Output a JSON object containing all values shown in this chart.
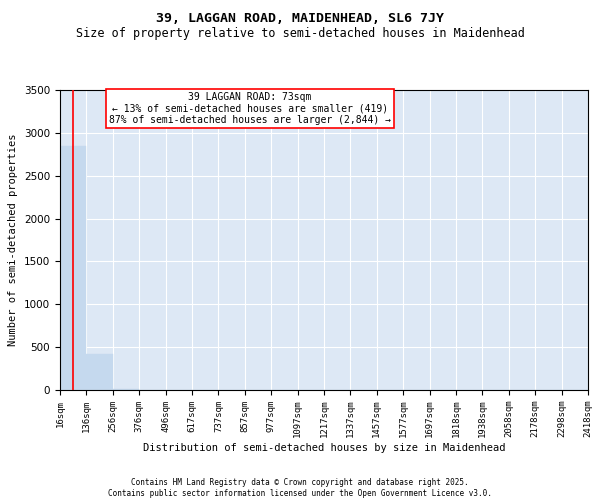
{
  "title": "39, LAGGAN ROAD, MAIDENHEAD, SL6 7JY",
  "subtitle": "Size of property relative to semi-detached houses in Maidenhead",
  "xlabel": "Distribution of semi-detached houses by size in Maidenhead",
  "ylabel": "Number of semi-detached properties",
  "bar_color": "#c5d9ee",
  "bar_edge_color": "#c5d9ee",
  "vline_color": "red",
  "vline_x": 73,
  "annotation_text": "39 LAGGAN ROAD: 73sqm\n← 13% of semi-detached houses are smaller (419)\n87% of semi-detached houses are larger (2,844) →",
  "ylim": [
    0,
    3500
  ],
  "bin_edges": [
    16,
    136,
    256,
    376,
    496,
    617,
    737,
    857,
    977,
    1097,
    1217,
    1337,
    1457,
    1577,
    1697,
    1818,
    1938,
    2058,
    2178,
    2298,
    2418
  ],
  "bar_heights": [
    2844,
    419,
    10,
    2,
    1,
    1,
    1,
    0,
    0,
    0,
    0,
    0,
    0,
    0,
    0,
    0,
    0,
    0,
    0,
    0
  ],
  "background_color": "#dde8f5",
  "grid_color": "white",
  "footer_text": "Contains HM Land Registry data © Crown copyright and database right 2025.\nContains public sector information licensed under the Open Government Licence v3.0.",
  "title_fontsize": 9.5,
  "subtitle_fontsize": 8.5,
  "tick_fontsize": 6.5,
  "ylabel_fontsize": 7.5,
  "xlabel_fontsize": 7.5,
  "footer_fontsize": 5.5
}
